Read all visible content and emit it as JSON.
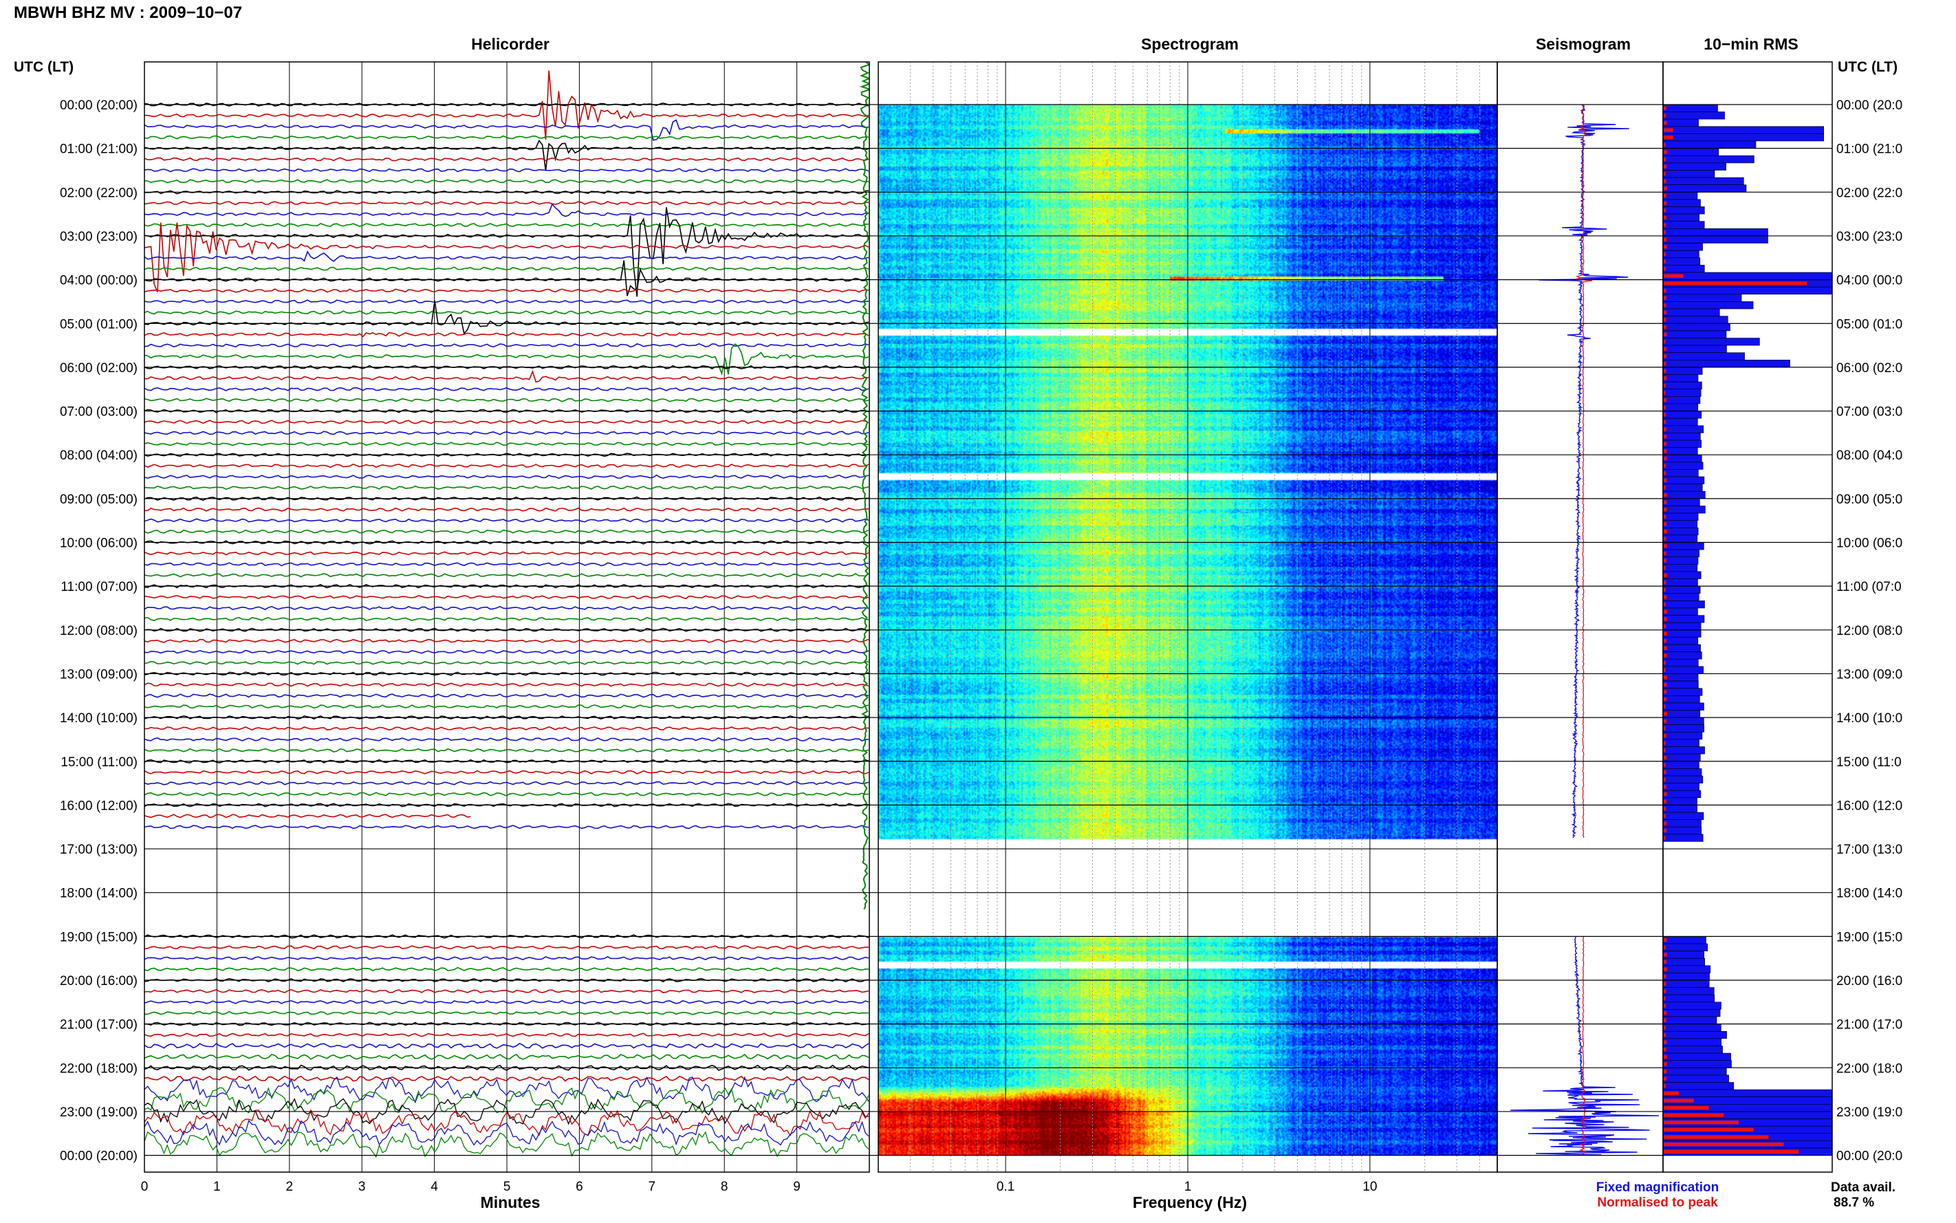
{
  "header": {
    "station_title": "MBWH BHZ MV : 2009−10−07",
    "utc_left": "UTC (LT)",
    "utc_right": "UTC (LT)"
  },
  "panels": {
    "helicorder": "Helicorder",
    "spectrogram": "Spectrogram",
    "seismogram": "Seismogram",
    "rms": "10−min RMS"
  },
  "time_labels": [
    "00:00 (20:00)",
    "01:00 (21:00)",
    "02:00 (22:00)",
    "03:00 (23:00)",
    "04:00 (00:00)",
    "05:00 (01:00)",
    "06:00 (02:00)",
    "07:00 (03:00)",
    "08:00 (04:00)",
    "09:00 (05:00)",
    "10:00 (06:00)",
    "11:00 (07:00)",
    "12:00 (08:00)",
    "13:00 (09:00)",
    "14:00 (10:00)",
    "15:00 (11:00)",
    "16:00 (12:00)",
    "17:00 (13:00)",
    "18:00 (14:00)",
    "19:00 (15:00)",
    "20:00 (16:00)",
    "21:00 (17:00)",
    "22:00 (18:00)",
    "23:00 (19:00)",
    "00:00 (20:00)"
  ],
  "time_labels_right": [
    "00:00 (20:0",
    "01:00 (21:0",
    "02:00 (22:0",
    "03:00 (23:0",
    "04:00 (00:0",
    "05:00 (01:0",
    "06:00 (02:0",
    "07:00 (03:0",
    "08:00 (04:0",
    "09:00 (05:0",
    "10:00 (06:0",
    "11:00 (07:0",
    "12:00 (08:0",
    "13:00 (09:0",
    "14:00 (10:0",
    "15:00 (11:0",
    "16:00 (12:0",
    "17:00 (13:0",
    "18:00 (14:0",
    "19:00 (15:0",
    "20:00 (16:0",
    "21:00 (17:0",
    "22:00 (18:0",
    "23:00 (19:0",
    "00:00 (20:0"
  ],
  "legend": {
    "fixed": "Fixed magnification",
    "normalised": "Normalised to peak",
    "fixed_color": "#1010ee",
    "normalised_color": "#ee1010"
  },
  "data_availability": {
    "label": "Data avail.",
    "value": "88.7 %"
  },
  "chart_data": [
    {
      "type": "line",
      "title": "Helicorder",
      "xlabel": "Minutes",
      "xticks": [
        "0",
        "1",
        "2",
        "3",
        "4",
        "5",
        "6",
        "7",
        "8",
        "9"
      ],
      "xlim": [
        0,
        10
      ],
      "series_colors": [
        "#000000",
        "#cc0000",
        "#1010cc",
        "#008800"
      ],
      "data_gaps_utc_hours": [
        [
          16.8,
          19.0
        ]
      ]
    },
    {
      "type": "heatmap",
      "title": "Spectrogram",
      "xlabel": "Frequency (Hz)",
      "xscale": "log",
      "xticks": [
        "0.1",
        "1",
        "10"
      ],
      "xlim": [
        0.02,
        50
      ],
      "colormap": "jet",
      "high_energy_interval_utc_hours": [
        22.4,
        24.0
      ]
    },
    {
      "type": "line",
      "title": "Seismogram",
      "series": [
        {
          "name": "Fixed magnification",
          "color": "#1010ee"
        },
        {
          "name": "Normalised to peak",
          "color": "#ee1010"
        }
      ]
    },
    {
      "type": "bar",
      "title": "10−min RMS",
      "orientation": "horizontal",
      "series": [
        {
          "name": "Fixed magnification",
          "color": "#1010ee"
        },
        {
          "name": "Normalised to peak",
          "color": "#ee1010"
        }
      ]
    }
  ]
}
